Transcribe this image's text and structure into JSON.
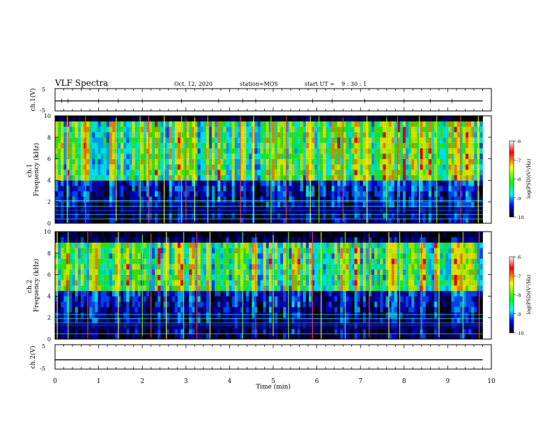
{
  "header": {
    "title": "VLF Spectra",
    "date": "Oct. 12, 2020",
    "station": "station=MOS",
    "start_ut_label": "start UT =",
    "start_ut_value": "9 : 30 : 1"
  },
  "chart_data": [
    {
      "type": "line",
      "name": "ch1-waveform",
      "ylabel": "ch.1(V)",
      "ylim": [
        -5,
        5
      ],
      "yticks": [
        "5",
        "-5"
      ],
      "x_range_min": [
        0,
        10
      ],
      "level_V": -0.5,
      "spikes_at_min": [
        0.0,
        0.15,
        0.3,
        1.0,
        1.45,
        2.0,
        2.9,
        3.75,
        4.3,
        4.6,
        5.9,
        6.35,
        7.1,
        8.0,
        8.6,
        9.1
      ]
    },
    {
      "type": "heatmap",
      "name": "ch1-spectrogram",
      "ylabel": "ch.1\nFrequency (kHz)",
      "ylim": [
        0,
        10
      ],
      "yticks": [
        "0",
        "2",
        "4",
        "6",
        "8",
        "10"
      ],
      "x_range_min": [
        0,
        9.8
      ],
      "colorbar": {
        "label": "log(PSD)(V²/Hz)",
        "range": [
          -10,
          -6
        ],
        "ticks": [
          "-6",
          "-7",
          "-8",
          "-9",
          "-10"
        ],
        "colors": [
          "#ffffff",
          "#ff0000",
          "#ffff00",
          "#00ff00",
          "#00ffff",
          "#0000ff",
          "#000000"
        ]
      },
      "band_kHz": [
        4,
        9
      ],
      "horizontal_lines_kHz": [
        0.4,
        0.8,
        1.2,
        1.6,
        2.0,
        2.1
      ],
      "sferic_lines_min": [
        0.0,
        0.28,
        0.7,
        1.4,
        1.95,
        2.15,
        2.5,
        2.9,
        3.0,
        3.2,
        3.5,
        4.25,
        4.55,
        4.95,
        5.3,
        5.85,
        6.05,
        6.6,
        7.15,
        7.6,
        7.85,
        8.35,
        8.75,
        9.3,
        9.7
      ]
    },
    {
      "type": "heatmap",
      "name": "ch2-spectrogram",
      "ylabel": "ch.2\nFrequency (kHz)",
      "ylim": [
        0,
        10
      ],
      "yticks": [
        "0",
        "2",
        "4",
        "6",
        "8",
        "10"
      ],
      "x_range_min": [
        0,
        9.8
      ],
      "colorbar": {
        "label": "log(PSD)(V²/Hz)",
        "range": [
          -10,
          -6
        ],
        "ticks": [
          "-6",
          "-7",
          "-8",
          "-9",
          "-10"
        ],
        "colors": [
          "#ffffff",
          "#ff0000",
          "#ffff00",
          "#00ff00",
          "#00ffff",
          "#0000ff",
          "#000000"
        ]
      },
      "band_kHz": [
        4.5,
        8.5
      ],
      "horizontal_lines_kHz": [
        0.5,
        1.3,
        1.5,
        1.9,
        2.3
      ],
      "sferic_lines_min": [
        0.05,
        0.3,
        0.75,
        1.45,
        2.0,
        2.2,
        2.55,
        2.95,
        3.25,
        3.55,
        4.3,
        4.6,
        5.0,
        5.35,
        5.9,
        6.1,
        6.65,
        7.2,
        7.65,
        7.9,
        8.4,
        8.8,
        9.35,
        9.72
      ]
    },
    {
      "type": "line",
      "name": "ch2-waveform",
      "ylabel": "ch.2(V)",
      "ylim": [
        -5,
        5
      ],
      "yticks": [
        "5",
        "-5"
      ],
      "x_range_min": [
        0,
        10
      ],
      "level_V": -1.2
    }
  ],
  "xaxis": {
    "label": "Time (min)",
    "range": [
      0,
      10
    ],
    "ticks": [
      "0",
      "1",
      "2",
      "3",
      "4",
      "5",
      "6",
      "7",
      "8",
      "9",
      "10"
    ]
  }
}
